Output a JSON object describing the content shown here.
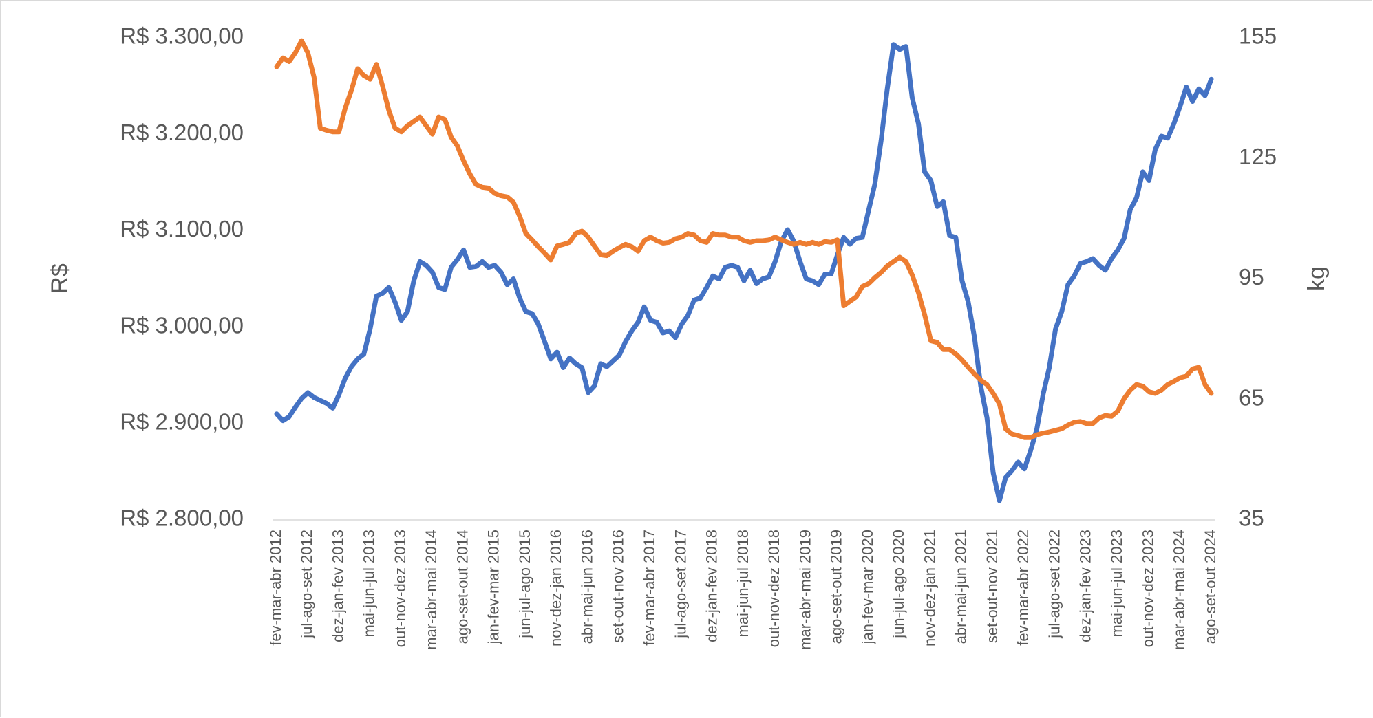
{
  "chart_data": {
    "type": "line",
    "y_label": "R$",
    "y2_label": "kg",
    "categories": [
      "fev-mar-abr 2012",
      null,
      null,
      null,
      null,
      "jul-ago-set 2012",
      null,
      null,
      null,
      null,
      "dez-jan-fev 2013",
      null,
      null,
      null,
      null,
      "mai-jun-jul 2013",
      null,
      null,
      null,
      null,
      "out-nov-dez 2013",
      null,
      null,
      null,
      null,
      "mar-abr-mai 2014",
      null,
      null,
      null,
      null,
      "ago-set-out 2014",
      null,
      null,
      null,
      null,
      "jan-fev-mar 2015",
      null,
      null,
      null,
      null,
      "jun-jul-ago 2015",
      null,
      null,
      null,
      null,
      "nov-dez-jan 2016",
      null,
      null,
      null,
      null,
      "abr-mai-jun 2016",
      null,
      null,
      null,
      null,
      "set-out-nov 2016",
      null,
      null,
      null,
      null,
      "fev-mar-abr 2017",
      null,
      null,
      null,
      null,
      "jul-ago-set 2017",
      null,
      null,
      null,
      null,
      "dez-jan-fev 2018",
      null,
      null,
      null,
      null,
      "mai-jun-jul 2018",
      null,
      null,
      null,
      null,
      "out-nov-dez 2018",
      null,
      null,
      null,
      null,
      "mar-abr-mai 2019",
      null,
      null,
      null,
      null,
      "ago-set-out 2019",
      null,
      null,
      null,
      null,
      "jan-fev-mar 2020",
      null,
      null,
      null,
      null,
      "jun-jul-ago 2020",
      null,
      null,
      null,
      null,
      "nov-dez-jan 2021",
      null,
      null,
      null,
      null,
      "abr-mai-jun 2021",
      null,
      null,
      null,
      null,
      "set-out-nov 2021",
      null,
      null,
      null,
      null,
      "fev-mar-abr 2022",
      null,
      null,
      null,
      null,
      "jul-ago-set 2022",
      null,
      null,
      null,
      null,
      "dez-jan-fev 2023",
      null,
      null,
      null,
      null,
      "mai-jun-jul 2023",
      null,
      null,
      null,
      null,
      "out-nov-dez 2023",
      null,
      null,
      null,
      null,
      "mar-abr-mai 2024",
      null,
      null,
      null,
      null,
      "ago-set-out 2024"
    ],
    "series": [
      {
        "color": "#4472c4",
        "axis": "y",
        "values": [
          2910,
          2903,
          2907,
          2917,
          2926,
          2932,
          2927,
          2924,
          2921,
          2916,
          2930,
          2947,
          2959,
          2967,
          2972,
          2998,
          3032,
          3035,
          3041,
          3026,
          3007,
          3016,
          3048,
          3068,
          3064,
          3057,
          3041,
          3039,
          3062,
          3070,
          3080,
          3062,
          3063,
          3068,
          3062,
          3064,
          3057,
          3044,
          3050,
          3030,
          3016,
          3014,
          3003,
          2985,
          2967,
          2974,
          2958,
          2968,
          2962,
          2958,
          2932,
          2939,
          2962,
          2959,
          2965,
          2971,
          2985,
          2996,
          3005,
          3021,
          3007,
          3005,
          2994,
          2996,
          2989,
          3003,
          3012,
          3028,
          3030,
          3041,
          3053,
          3050,
          3062,
          3064,
          3062,
          3048,
          3059,
          3045,
          3050,
          3052,
          3068,
          3089,
          3101,
          3089,
          3068,
          3050,
          3048,
          3044,
          3055,
          3055,
          3075,
          3093,
          3086,
          3092,
          3093,
          3121,
          3148,
          3193,
          3247,
          3293,
          3288,
          3291,
          3238,
          3211,
          3161,
          3152,
          3125,
          3130,
          3095,
          3093,
          3048,
          3026,
          2989,
          2939,
          2906,
          2849,
          2820,
          2844,
          2851,
          2860,
          2853,
          2872,
          2894,
          2930,
          2958,
          2998,
          3016,
          3044,
          3053,
          3066,
          3068,
          3071,
          3064,
          3059,
          3071,
          3080,
          3092,
          3122,
          3134,
          3161,
          3152,
          3184,
          3198,
          3196,
          3211,
          3229,
          3249,
          3234,
          3247,
          3240,
          3257
        ]
      },
      {
        "color": "#ed7d31",
        "axis": "y2",
        "values": [
          147.8,
          150,
          149.1,
          151.3,
          154.3,
          151.3,
          145.2,
          132.5,
          132,
          131.6,
          131.6,
          137.5,
          141.9,
          147.3,
          145.6,
          144.7,
          148.4,
          143,
          136.9,
          132.5,
          131.6,
          133.1,
          134.2,
          135.3,
          133.1,
          131,
          135.3,
          134.7,
          130.3,
          128.1,
          124.4,
          121.1,
          118.5,
          117.8,
          117.6,
          116.3,
          115.7,
          115.4,
          114.1,
          110.6,
          106.3,
          104.7,
          103,
          101.4,
          99.7,
          103.2,
          103.6,
          104.1,
          106.3,
          106.9,
          105.4,
          103.2,
          101,
          100.8,
          101.9,
          102.8,
          103.6,
          103,
          101.9,
          104.5,
          105.4,
          104.5,
          103.9,
          104.1,
          105,
          105.4,
          106.3,
          105.9,
          104.5,
          104.1,
          106.3,
          105.9,
          105.9,
          105.4,
          105.4,
          104.5,
          104.1,
          104.5,
          104.5,
          104.7,
          105.4,
          104.7,
          104.1,
          103.6,
          104.1,
          103.6,
          104.1,
          103.6,
          104.3,
          104.1,
          104.7,
          88.3,
          89.4,
          90.5,
          93.1,
          93.8,
          95.3,
          96.6,
          98.2,
          99.3,
          100.4,
          99.3,
          96,
          91.6,
          86.1,
          79.6,
          79.2,
          77.4,
          77.4,
          76.3,
          74.8,
          73,
          71.3,
          69.8,
          68.7,
          66.5,
          63.9,
          57.7,
          56.4,
          56,
          55.5,
          55.5,
          56.2,
          56.6,
          56.9,
          57.3,
          57.7,
          58.6,
          59.3,
          59.5,
          59,
          59,
          60.4,
          61,
          60.8,
          62.1,
          65.2,
          67.3,
          68.7,
          68.3,
          66.9,
          66.5,
          67.3,
          68.7,
          69.5,
          70.4,
          70.8,
          72.6,
          73,
          68.7,
          66.5
        ]
      }
    ],
    "ylim": [
      2800,
      3300
    ],
    "yticks": [
      {
        "value": 2800,
        "label": "R$ 2.800,00"
      },
      {
        "value": 2900,
        "label": "R$ 2.900,00"
      },
      {
        "value": 3000,
        "label": "R$ 3.000,00"
      },
      {
        "value": 3100,
        "label": "R$ 3.100,00"
      },
      {
        "value": 3200,
        "label": "R$ 3.200,00"
      },
      {
        "value": 3300,
        "label": "R$ 3.300,00"
      }
    ],
    "y2lim": [
      35,
      155
    ],
    "y2ticks": [
      35,
      65,
      95,
      125,
      155
    ],
    "grid": false
  }
}
